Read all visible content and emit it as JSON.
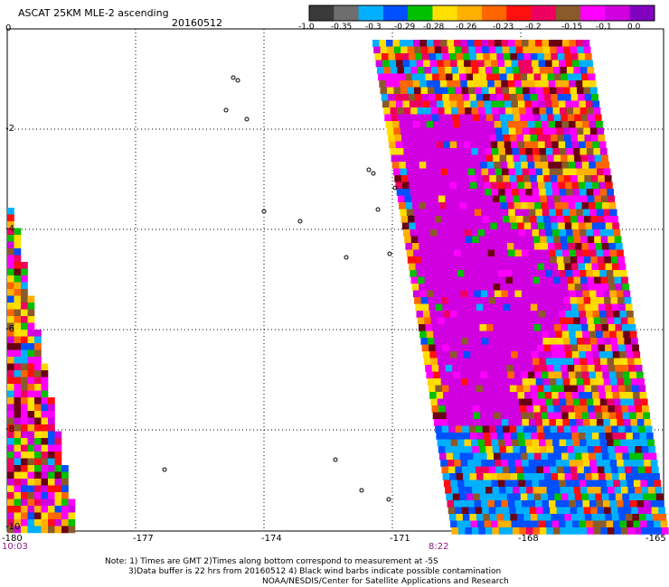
{
  "header": {
    "title": "ASCAT 25KM MLE-2 ascending",
    "date": "20160512"
  },
  "colorbar": {
    "labels": [
      "-1.0",
      "-0.35",
      "-0.3",
      "-0.29",
      "-0.28",
      "-0.26",
      "-0.23",
      "-0.2",
      "-0.15",
      "-0.1",
      "0.0"
    ],
    "colors": [
      "#3a3a3a",
      "#6e6e6e",
      "#00b0ff",
      "#0050ff",
      "#00c000",
      "#ffe000",
      "#ffb000",
      "#ff6600",
      "#ff1010",
      "#ee0060",
      "#8b5a2b",
      "#ff00ff",
      "#d000e0",
      "#8000c0"
    ]
  },
  "map": {
    "x_ticks": [
      "-180",
      "-177",
      "-174",
      "-171",
      "-168",
      "-165"
    ],
    "y_ticks": [
      "0",
      "-2",
      "-4",
      "-6",
      "-8",
      "-10"
    ],
    "time_left": "10:03",
    "time_mid": "8:22"
  },
  "notes": {
    "line1": "Note: 1) Times are GMT 2)Times along bottom correspond to measurement at -5S",
    "line2": "3)Data buffer is 22 hrs from 20160512 4) Black wind barbs indicate possible contamination",
    "line3": "NOAA/NESDIS/Center for Satellite Applications and Research"
  }
}
